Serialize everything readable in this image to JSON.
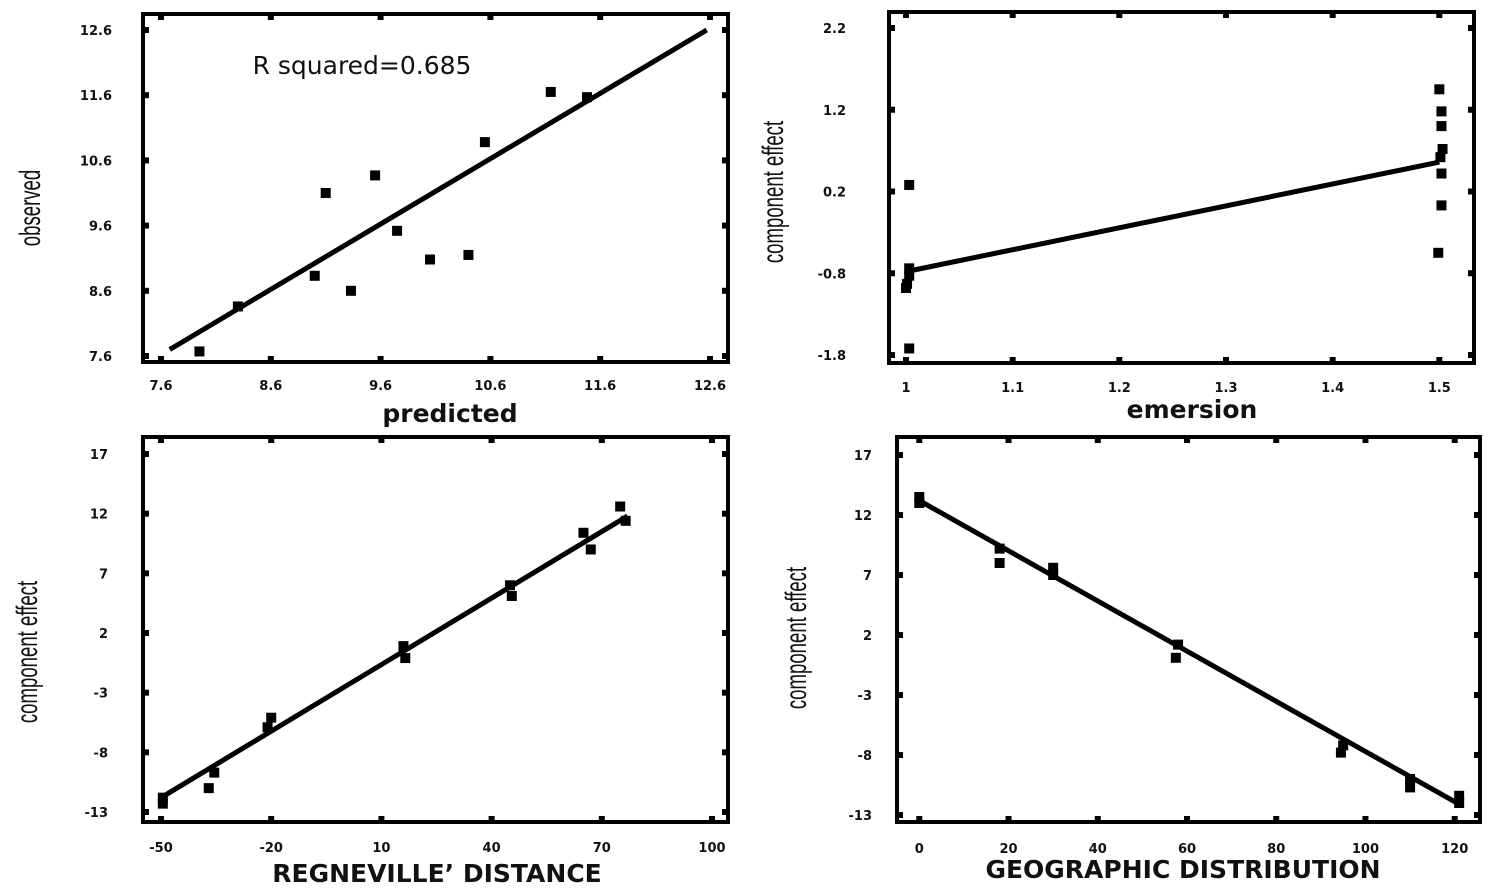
{
  "chart_data": [
    {
      "type": "scatter",
      "xlabel": "predicted",
      "ylabel": "observed",
      "annotation": "R squared=0.685",
      "xlim": [
        7.6,
        12.6
      ],
      "ylim": [
        7.6,
        12.6
      ],
      "xticks": [
        "7.6",
        "8.6",
        "9.6",
        "10.6",
        "11.6",
        "12.6"
      ],
      "yticks": [
        "7.6",
        "8.6",
        "9.6",
        "10.6",
        "11.6",
        "12.6"
      ],
      "fit_line": [
        [
          7.68,
          7.7
        ],
        [
          12.57,
          12.6
        ]
      ],
      "points": [
        {
          "x": 7.95,
          "y": 7.67
        },
        {
          "x": 8.3,
          "y": 8.36
        },
        {
          "x": 9.0,
          "y": 8.83
        },
        {
          "x": 9.1,
          "y": 10.1
        },
        {
          "x": 9.33,
          "y": 8.6
        },
        {
          "x": 9.55,
          "y": 10.37
        },
        {
          "x": 9.75,
          "y": 9.52
        },
        {
          "x": 10.05,
          "y": 9.08
        },
        {
          "x": 10.4,
          "y": 9.15
        },
        {
          "x": 10.55,
          "y": 10.88
        },
        {
          "x": 11.15,
          "y": 11.65
        },
        {
          "x": 11.48,
          "y": 11.57
        }
      ]
    },
    {
      "type": "scatter",
      "xlabel": "emersion",
      "ylabel": "component effect",
      "xlim": [
        0.985,
        1.525
      ],
      "ylim": [
        -1.8,
        2.2
      ],
      "xticks": [
        "1",
        "1.1",
        "1.2",
        "1.3",
        "1.4",
        "1.5"
      ],
      "yticks": [
        "-1.8",
        "-0.8",
        "0.2",
        "1.2",
        "2.2"
      ],
      "fit_line": [
        [
          1.0,
          -0.78
        ],
        [
          1.5,
          0.56
        ]
      ],
      "points": [
        {
          "x": 1.003,
          "y": 0.28
        },
        {
          "x": 1.003,
          "y": -1.72
        },
        {
          "x": 1.003,
          "y": -0.74
        },
        {
          "x": 1.003,
          "y": -0.83
        },
        {
          "x": 1.0,
          "y": -0.98
        },
        {
          "x": 1.001,
          "y": -0.93
        },
        {
          "x": 1.5,
          "y": 1.45
        },
        {
          "x": 1.502,
          "y": 1.18
        },
        {
          "x": 1.502,
          "y": 1.0
        },
        {
          "x": 1.503,
          "y": 0.72
        },
        {
          "x": 1.501,
          "y": 0.62
        },
        {
          "x": 1.502,
          "y": 0.42
        },
        {
          "x": 1.502,
          "y": 0.03
        },
        {
          "x": 1.499,
          "y": -0.55
        }
      ]
    },
    {
      "type": "scatter",
      "xlabel": "REGNEVILLE’ DISTANCE",
      "ylabel": "component effect",
      "xlim": [
        -50,
        100
      ],
      "ylim": [
        -13,
        17
      ],
      "xticks": [
        "-50",
        "-20",
        "10",
        "40",
        "70",
        "100"
      ],
      "yticks": [
        "-13",
        "-8",
        "-3",
        "2",
        "7",
        "12",
        "17"
      ],
      "fit_line": [
        [
          -50,
          -11.8
        ],
        [
          77,
          11.8
        ]
      ],
      "points": [
        {
          "x": -49.5,
          "y": -11.8
        },
        {
          "x": -49.5,
          "y": -12.3
        },
        {
          "x": -35.5,
          "y": -9.7
        },
        {
          "x": -37,
          "y": -11.0
        },
        {
          "x": -20,
          "y": -5.1
        },
        {
          "x": -21,
          "y": -5.9
        },
        {
          "x": 16,
          "y": 0.9
        },
        {
          "x": 16.5,
          "y": -0.1
        },
        {
          "x": 45,
          "y": 6.0
        },
        {
          "x": 45.5,
          "y": 5.1
        },
        {
          "x": 65,
          "y": 10.4
        },
        {
          "x": 67,
          "y": 9.0
        },
        {
          "x": 75,
          "y": 12.6
        },
        {
          "x": 76.5,
          "y": 11.4
        }
      ]
    },
    {
      "type": "scatter",
      "xlabel": "GEOGRAPHIC DISTRIBUTION",
      "ylabel": "component effect",
      "xlim": [
        -5,
        125
      ],
      "ylim": [
        -13,
        17
      ],
      "xticks": [
        "0",
        "20",
        "40",
        "60",
        "80",
        "100",
        "120"
      ],
      "yticks": [
        "-13",
        "-8",
        "-3",
        "2",
        "7",
        "12",
        "17"
      ],
      "fit_line": [
        [
          0,
          13.2
        ],
        [
          121,
          -12.1
        ]
      ],
      "points": [
        {
          "x": 0,
          "y": 13.5
        },
        {
          "x": 0,
          "y": 13.0
        },
        {
          "x": 18,
          "y": 9.2
        },
        {
          "x": 18,
          "y": 8.0
        },
        {
          "x": 30,
          "y": 7.6
        },
        {
          "x": 30,
          "y": 7.0
        },
        {
          "x": 58,
          "y": 1.2
        },
        {
          "x": 57.5,
          "y": 0.1
        },
        {
          "x": 95,
          "y": -7.2
        },
        {
          "x": 94.5,
          "y": -7.8
        },
        {
          "x": 110,
          "y": -10.0
        },
        {
          "x": 110,
          "y": -10.7
        },
        {
          "x": 121,
          "y": -11.4
        },
        {
          "x": 121,
          "y": -12.0
        }
      ]
    }
  ]
}
